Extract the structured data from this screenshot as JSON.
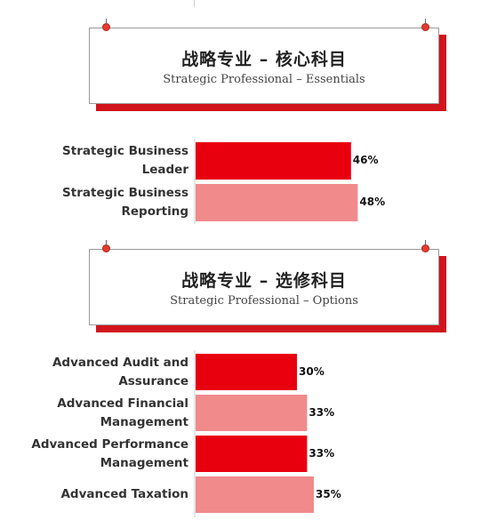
{
  "colors": {
    "accent": "#e8000f",
    "accent_light": "#f08a8b",
    "shadow": "#d2141c"
  },
  "sections": [
    {
      "title": "战略专业 – 核心科目",
      "subtitle": "Strategic Professional – Essentials"
    },
    {
      "title": "战略专业 – 选修科目",
      "subtitle": "Strategic Professional – Options"
    }
  ],
  "chart_data": [
    {
      "type": "bar",
      "orientation": "horizontal",
      "categories": [
        [
          "Strategic Business",
          "Leader"
        ],
        [
          "Strategic Business",
          "Reporting"
        ]
      ],
      "values": [
        46,
        48
      ],
      "value_labels": [
        "46%",
        "48%"
      ],
      "bar_colors": [
        "#e8000f",
        "#f08a8b"
      ],
      "xlim": [
        0,
        100
      ],
      "grid": false
    },
    {
      "type": "bar",
      "orientation": "horizontal",
      "categories": [
        [
          "Advanced Audit and",
          "Assurance"
        ],
        [
          "Advanced Financial",
          "Management"
        ],
        [
          "Advanced Performance",
          "Management"
        ],
        [
          "Advanced Taxation"
        ]
      ],
      "values": [
        30,
        33,
        33,
        35
      ],
      "value_labels": [
        "30%",
        "33%",
        "33%",
        "35%"
      ],
      "bar_colors": [
        "#e8000f",
        "#f08a8b",
        "#e8000f",
        "#f08a8b"
      ],
      "xlim": [
        0,
        100
      ],
      "grid": false
    }
  ]
}
